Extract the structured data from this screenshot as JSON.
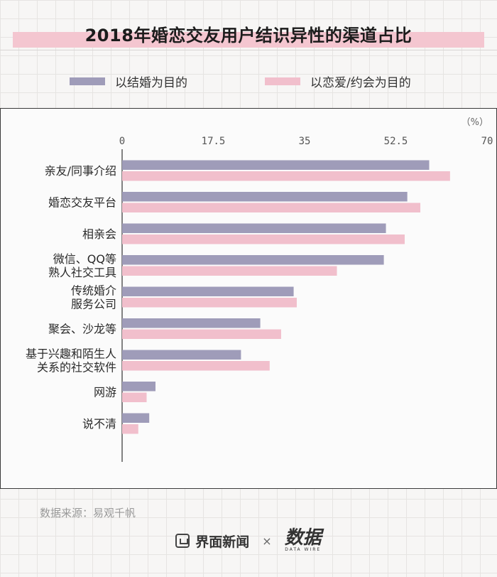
{
  "title": "2018年婚恋交友用户结识异性的渠道占比",
  "legend": [
    {
      "label": "以结婚为目的",
      "color": "#9f9cb9"
    },
    {
      "label": "以恋爱/约会为目的",
      "color": "#f1bfcc"
    }
  ],
  "unit": "（%）",
  "source": "数据来源：易观千帆",
  "footer": {
    "brand": "界面新闻",
    "separator": "×",
    "partner": "数据",
    "partner_en": "DATA WIRE"
  },
  "chart_data": {
    "type": "bar",
    "orientation": "horizontal",
    "title": "2018年婚恋交友用户结识异性的渠道占比",
    "xlim": [
      0,
      70
    ],
    "xticks": [
      "0",
      "17.5",
      "35",
      "52.5",
      "70"
    ],
    "categories": [
      [
        "亲友/同事介绍"
      ],
      [
        "婚恋交友平台"
      ],
      [
        "相亲会"
      ],
      [
        "微信、QQ等",
        "熟人社交工具"
      ],
      [
        "传统婚介",
        "服务公司"
      ],
      [
        "聚会、沙龙等"
      ],
      [
        "基于兴趣和陌生人",
        "关系的社交软件"
      ],
      [
        "网游"
      ],
      [
        "说不清"
      ]
    ],
    "series": [
      {
        "name": "以结婚为目的",
        "color": "#9f9cb9",
        "values": [
          58.9,
          54.7,
          50.6,
          50.2,
          32.9,
          26.5,
          22.8,
          6.4,
          5.2
        ]
      },
      {
        "name": "以恋爱/约会为目的",
        "color": "#f1bfcc",
        "values": [
          62.9,
          57.2,
          54.2,
          41.2,
          33.5,
          30.5,
          28.3,
          4.7,
          3.1
        ]
      }
    ],
    "grid": false,
    "legend_position": "top"
  }
}
